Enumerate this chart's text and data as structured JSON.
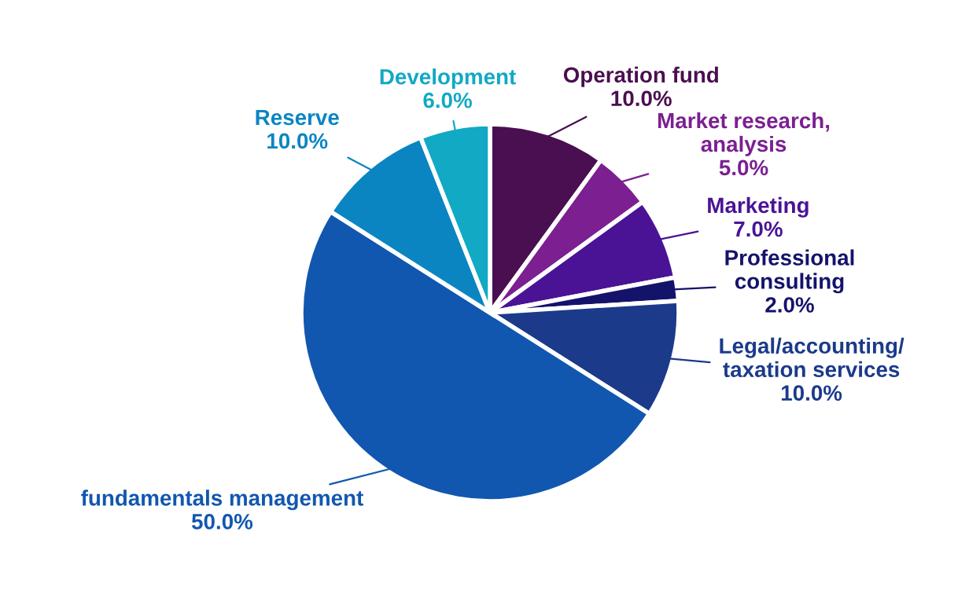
{
  "chart_data": {
    "type": "pie",
    "categories": [
      "Operation fund",
      "Market research,\nanalysis",
      "Marketing",
      "Professional\nconsulting",
      "Legal/accounting/\ntaxation services",
      "fundamentals management",
      "Reserve",
      "Development"
    ],
    "values": [
      10,
      5,
      7,
      2,
      10,
      50,
      10,
      6
    ],
    "value_labels": [
      "10.0%",
      "5.0%",
      "7.0%",
      "2.0%",
      "10.0%",
      "50.0%",
      "10.0%",
      "6.0%"
    ],
    "colors": [
      "#4a0f50",
      "#7b1f91",
      "#4a1396",
      "#14136b",
      "#1b3a8a",
      "#1157b0",
      "#0a85c2",
      "#11a9c4"
    ],
    "legend": false
  }
}
